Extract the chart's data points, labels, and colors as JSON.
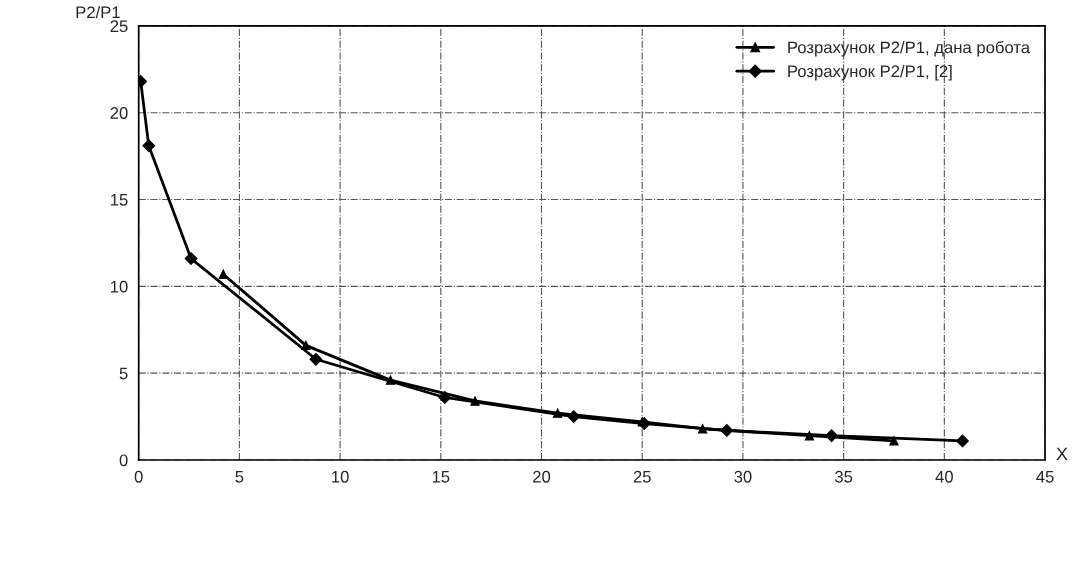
{
  "chart_data": {
    "type": "line",
    "xlabel": "X",
    "ylabel": "P2/P1",
    "series": [
      {
        "name": "Розрахунок P2/P1, дана робота",
        "color": "#000000",
        "marker": "triangle",
        "x": [
          4.2,
          8.3,
          12.5,
          16.7,
          20.8,
          25.0,
          28.0,
          33.3,
          37.5
        ],
        "values": [
          10.7,
          6.6,
          4.6,
          3.4,
          2.7,
          2.2,
          1.8,
          1.4,
          1.1
        ]
      },
      {
        "name": "Розрахунок P2/P1, [2]",
        "color": "#000000",
        "marker": "diamond",
        "x": [
          0.1,
          0.5,
          2.6,
          8.8,
          15.2,
          21.6,
          25.1,
          29.2,
          34.4,
          40.9
        ],
        "values": [
          21.8,
          18.1,
          11.6,
          5.8,
          3.6,
          2.5,
          2.1,
          1.7,
          1.4,
          1.1
        ]
      }
    ],
    "xlim": [
      0,
      45
    ],
    "xticks": [
      0,
      5,
      10,
      15,
      20,
      25,
      30,
      35,
      40,
      45
    ],
    "ylim": [
      0,
      25
    ],
    "yticks": [
      0,
      5,
      10,
      15,
      20,
      25
    ],
    "grid": true,
    "legend": "top right",
    "line_style": "solid"
  }
}
